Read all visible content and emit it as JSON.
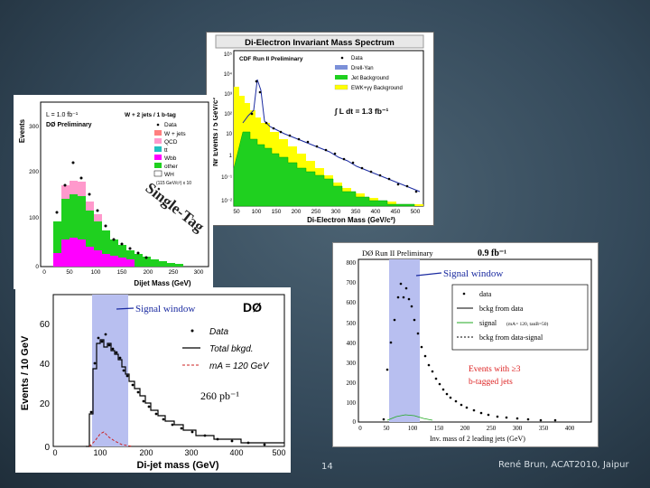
{
  "slide": {
    "page_number": "14",
    "author_venue": "René Brun, ACAT2010, Jaipur"
  },
  "panels": {
    "cdf": {
      "title": "Di-Electron Invariant Mass Spectrum",
      "prelim": "CDF Run II Preliminary",
      "ylabel": "Nr Events / 5 GeV/c²",
      "xlabel": "Di-Electron Mass (GeV/c²)",
      "lumi": "∫ L dt = 1.3 fb⁻¹",
      "legend": [
        "Data",
        "Drell-Yan",
        "Jet Background",
        "EWK+γγ Background"
      ],
      "xticks": [
        "50",
        "100",
        "150",
        "200",
        "250",
        "300",
        "350",
        "400",
        "450",
        "500"
      ],
      "yticks": [
        "10⁵",
        "10⁴",
        "10³",
        "10²",
        "10",
        "1",
        "10⁻¹",
        "10⁻²"
      ]
    },
    "d0_singletag": {
      "lumi": "L = 1.0 fb⁻¹",
      "prelim": "DØ Preliminary",
      "selection": "W + 2 jets / 1 b-tag",
      "ylabel": "Events",
      "xlabel": "Dijet Mass (GeV)",
      "overlay": "Single-Tag",
      "legend": [
        "Data",
        "W + jets",
        "QCD",
        "tt",
        "Wbb",
        "other",
        "WH"
      ],
      "legend_note": "(115 GeV/c²) x 10",
      "xticks": [
        "0",
        "50",
        "100",
        "150",
        "200",
        "250",
        "300"
      ],
      "yticks": [
        "300",
        "200",
        "100",
        "0"
      ]
    },
    "d0_dijet": {
      "signal": "Signal window",
      "experiment": "DØ",
      "ylabel": "Events / 10 GeV",
      "xlabel": "Di-jet mass  (GeV)",
      "lumi": "260 pb⁻¹",
      "legend": [
        "Data",
        "Total bkgd.",
        "mA = 120 GeV"
      ],
      "xticks": [
        "0",
        "100",
        "200",
        "300",
        "400",
        "500"
      ],
      "yticks": [
        "60",
        "40",
        "20",
        "0"
      ]
    },
    "d0_btag": {
      "prelim": "DØ Run II Preliminary",
      "lumi": "0.9 fb⁻¹",
      "signal": "Signal window",
      "legend": [
        "data",
        "bckg from data",
        "signal",
        "bckg from data-signal"
      ],
      "legend_note": "(mA= 120, tanB=50)",
      "events": "Events with ≥3",
      "events2": "b-tagged jets",
      "xlabel": "Inv. mass of 2 leading jets (GeV)",
      "xticks": [
        "0",
        "50",
        "100",
        "150",
        "200",
        "250",
        "300",
        "350",
        "400"
      ],
      "yticks": [
        "800",
        "700",
        "600",
        "500",
        "400",
        "300",
        "200",
        "100",
        "0"
      ]
    }
  },
  "colors": {
    "drell_yan": "#7b90d8",
    "jet_bkg": "#1fd01f",
    "ewk_bkg": "#ffff00",
    "signal_band": "#b8bff0",
    "qcd": "#ff99cc",
    "wjets": "#ff7f7f",
    "wbb": "#ff00ff",
    "tt": "#20c0c0",
    "red_text": "#dd2222",
    "blue_text": "#1a2aa0"
  }
}
